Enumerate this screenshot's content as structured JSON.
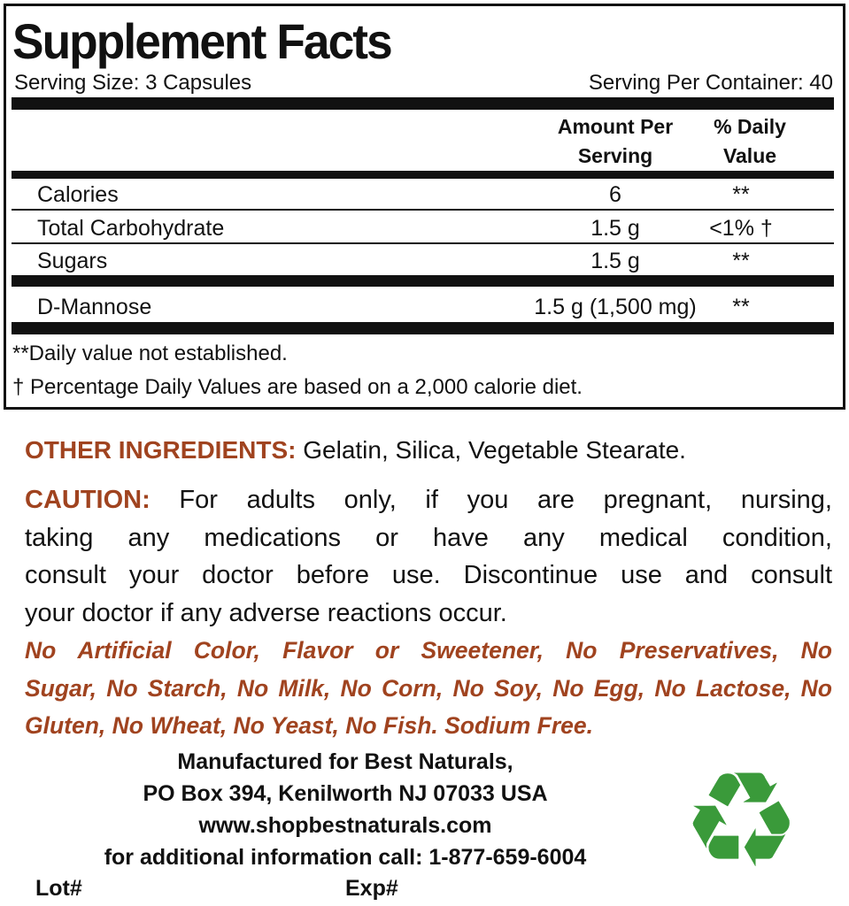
{
  "facts": {
    "title": "Supplement Facts",
    "serving_size": "Serving Size: 3 Capsules",
    "servings_per_container": "Serving Per Container: 40",
    "col_amount": [
      "Amount Per",
      "Serving"
    ],
    "col_dv": [
      "% Daily",
      "Value"
    ],
    "rows": [
      {
        "name": "Calories",
        "amount": "6",
        "dv": "**"
      },
      {
        "name": "Total Carbohydrate",
        "amount": "1.5 g",
        "dv": "<1% †"
      },
      {
        "name": "Sugars",
        "amount": "1.5 g",
        "dv": "**"
      },
      {
        "name": "D-Mannose",
        "amount": "1.5 g (1,500 mg)",
        "dv": "**"
      }
    ],
    "footnotes": [
      "**Daily value not established.",
      "† Percentage Daily Values are based on a 2,000 calorie diet."
    ]
  },
  "other_ingredients": {
    "label": "OTHER INGREDIENTS:",
    "text": " Gelatin, Silica, Vegetable Stearate."
  },
  "caution": {
    "label": "CAUTION:",
    "lines": [
      " For adults only, if you are pregnant, nursing,",
      "taking any medications or have any medical condition,",
      "consult your doctor before use. Discontinue use and consult",
      "your doctor if any adverse reactions occur."
    ]
  },
  "free_from": [
    "No Artificial Color, Flavor or Sweetener, No Preservatives, No",
    "Sugar, No Starch, No Milk, No Corn, No Soy, No Egg, No Lactose, No",
    "Gluten, No Wheat, No Yeast, No Fish. Sodium Free."
  ],
  "manufacturer": [
    "Manufactured for Best Naturals,",
    "PO Box 394, Kenilworth NJ 07033 USA",
    "www.shopbestnaturals.com",
    "for additional information call: 1-877-659-6004"
  ],
  "lot_label": "Lot#",
  "exp_label": "Exp#",
  "colors": {
    "accent": "#a0431f",
    "recycle": "#3a9a3a"
  },
  "icons": {
    "recycle": "recycle-icon"
  }
}
